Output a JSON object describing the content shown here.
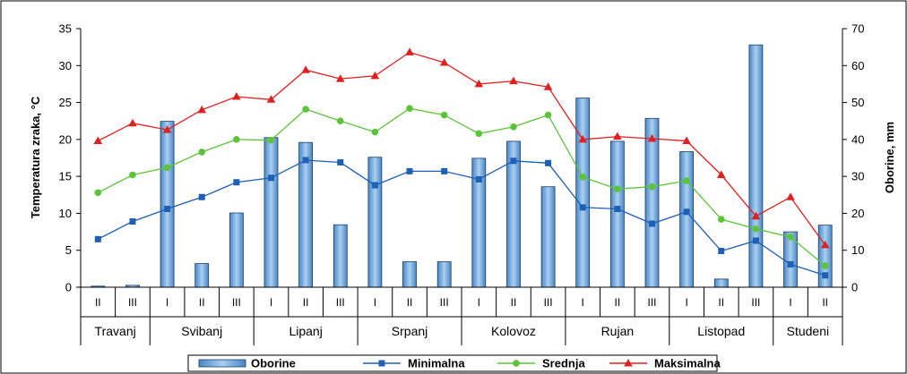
{
  "chart_data": {
    "type": "bar",
    "y_left": {
      "label": "Temperatura zraka, °C",
      "lim": [
        0,
        35
      ],
      "ticks": [
        "0",
        "5",
        "10",
        "15",
        "20",
        "25",
        "30",
        "35"
      ]
    },
    "y_right": {
      "label": "Oborine, mm",
      "lim": [
        0,
        70
      ],
      "ticks": [
        "0",
        "10",
        "20",
        "30",
        "40",
        "50",
        "60",
        "70"
      ]
    },
    "categories": [
      "II",
      "III",
      "I",
      "II",
      "III",
      "I",
      "II",
      "III",
      "I",
      "II",
      "III",
      "I",
      "II",
      "III",
      "I",
      "II",
      "III",
      "I",
      "II",
      "III",
      "I",
      "II"
    ],
    "months": [
      {
        "name": "Travanj",
        "span": 2
      },
      {
        "name": "Svibanj",
        "span": 3
      },
      {
        "name": "Lipanj",
        "span": 3
      },
      {
        "name": "Srpanj",
        "span": 3
      },
      {
        "name": "Kolovoz",
        "span": 3
      },
      {
        "name": "Rujan",
        "span": 3
      },
      {
        "name": "Listopad",
        "span": 3
      },
      {
        "name": "Studeni",
        "span": 2
      }
    ],
    "series": [
      {
        "name": "Oborine",
        "type": "bar",
        "axis": "right",
        "color": "#8ab8e0",
        "values": [
          0.3,
          0.5,
          44.9,
          6.4,
          20.1,
          40.5,
          39.2,
          16.9,
          35.2,
          6.9,
          6.9,
          34.9,
          39.5,
          27.2,
          51.2,
          39.5,
          45.7,
          36.7,
          2.2,
          65.6,
          15.0,
          16.8
        ]
      },
      {
        "name": "Minimalna",
        "type": "line",
        "axis": "left",
        "color": "#1f5fb4",
        "marker": "square",
        "values": [
          6.5,
          8.9,
          10.6,
          12.2,
          14.2,
          14.8,
          17.2,
          16.9,
          13.8,
          15.7,
          15.7,
          14.6,
          17.1,
          16.8,
          10.8,
          10.6,
          8.6,
          10.2,
          4.9,
          6.3,
          3.1,
          1.6
        ]
      },
      {
        "name": "Srednja",
        "type": "line",
        "axis": "left",
        "color": "#5cc33a",
        "marker": "circle",
        "values": [
          12.8,
          15.2,
          16.2,
          18.3,
          20.0,
          19.9,
          24.1,
          22.5,
          21.0,
          24.2,
          23.3,
          20.8,
          21.7,
          23.3,
          14.9,
          13.3,
          13.6,
          14.4,
          9.2,
          7.9,
          6.8,
          2.9
        ]
      },
      {
        "name": "Maksimalna",
        "type": "line",
        "axis": "left",
        "color": "#e02020",
        "marker": "triangle",
        "values": [
          19.8,
          22.2,
          21.3,
          24.0,
          25.8,
          25.4,
          29.4,
          28.2,
          28.6,
          31.8,
          30.4,
          27.5,
          27.9,
          27.1,
          20.0,
          20.4,
          20.1,
          19.8,
          15.2,
          9.6,
          12.2,
          5.7
        ]
      }
    ],
    "legend": [
      "Oborine",
      "Minimalna",
      "Srednja",
      "Maksimalna"
    ],
    "legend_position": "bottom",
    "grid": false
  }
}
